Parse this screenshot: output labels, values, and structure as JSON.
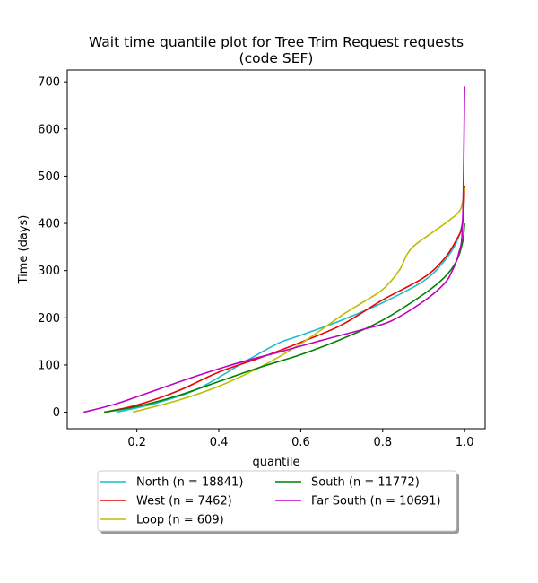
{
  "chart_data": {
    "type": "line",
    "title": "Wait time quantile plot for Tree Trim Request  requests",
    "subtitle": "(code SEF)",
    "xlabel": "quantile",
    "ylabel": "Time (days)",
    "xlim": [
      0.03,
      1.05
    ],
    "ylim": [
      -35,
      725
    ],
    "xticks": [
      0.2,
      0.4,
      0.6,
      0.8,
      1.0
    ],
    "xtick_labels": [
      "0.2",
      "0.4",
      "0.6",
      "0.8",
      "1.0"
    ],
    "yticks": [
      0,
      100,
      200,
      300,
      400,
      500,
      600,
      700
    ],
    "ytick_labels": [
      "0",
      "100",
      "200",
      "300",
      "400",
      "500",
      "600",
      "700"
    ],
    "grid": false,
    "legend_position": "below",
    "series": [
      {
        "name": "North (n = 18841)",
        "color": "#17becf",
        "x": [
          0.15,
          0.25,
          0.35,
          0.45,
          0.5,
          0.55,
          0.6,
          0.7,
          0.8,
          0.9,
          0.95,
          0.98,
          0.995,
          1.0
        ],
        "y": [
          0,
          20,
          50,
          100,
          125,
          148,
          163,
          195,
          232,
          278,
          320,
          360,
          405,
          480
        ]
      },
      {
        "name": "West (n = 7462)",
        "color": "#ee0000",
        "x": [
          0.12,
          0.2,
          0.3,
          0.4,
          0.5,
          0.6,
          0.7,
          0.8,
          0.9,
          0.95,
          0.98,
          0.995,
          1.0
        ],
        "y": [
          0,
          15,
          45,
          85,
          115,
          148,
          185,
          238,
          285,
          325,
          365,
          400,
          480
        ]
      },
      {
        "name": "Loop (n = 609)",
        "color": "#bcbd00",
        "x": [
          0.19,
          0.3,
          0.4,
          0.5,
          0.6,
          0.7,
          0.75,
          0.8,
          0.84,
          0.86,
          0.88,
          0.92,
          0.96,
          0.99,
          1.0
        ],
        "y": [
          0,
          25,
          55,
          95,
          145,
          205,
          232,
          260,
          300,
          335,
          355,
          380,
          405,
          430,
          475
        ]
      },
      {
        "name": "South (n = 11772)",
        "color": "#008000",
        "x": [
          0.12,
          0.2,
          0.3,
          0.4,
          0.5,
          0.6,
          0.7,
          0.8,
          0.9,
          0.95,
          0.98,
          0.995,
          1.0
        ],
        "y": [
          0,
          12,
          35,
          65,
          95,
          122,
          155,
          195,
          250,
          285,
          320,
          360,
          400
        ]
      },
      {
        "name": "Far South (n = 10691)",
        "color": "#c000c0",
        "x": [
          0.07,
          0.15,
          0.25,
          0.35,
          0.45,
          0.55,
          0.65,
          0.75,
          0.82,
          0.9,
          0.95,
          0.97,
          0.985,
          0.995,
          1.0
        ],
        "y": [
          0,
          18,
          48,
          78,
          105,
          128,
          152,
          175,
          193,
          235,
          272,
          300,
          335,
          400,
          690
        ]
      }
    ]
  }
}
